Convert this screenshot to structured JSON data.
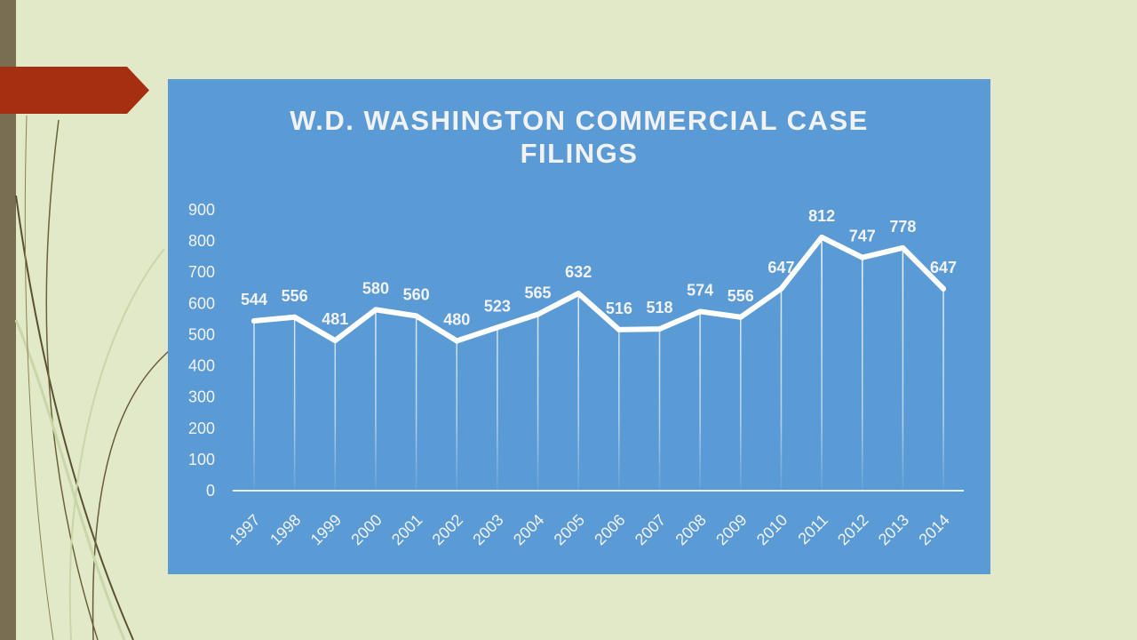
{
  "colors": {
    "background": "#e2e9c8",
    "left_bar": "#7a6e52",
    "arrow": "#a52f10",
    "chart_background": "#5b9bd5",
    "line": "#ffffff",
    "text": "#f2f2f2"
  },
  "chart_data": {
    "type": "line",
    "title": "W.D. WASHINGTON COMMERCIAL CASE FILINGS",
    "title_lines": [
      "W.D. WASHINGTON COMMERCIAL CASE",
      "FILINGS"
    ],
    "xlabel": "",
    "ylabel": "",
    "ylim": [
      0,
      900
    ],
    "yticks": [
      0,
      100,
      200,
      300,
      400,
      500,
      600,
      700,
      800,
      900
    ],
    "grid": false,
    "legend": "none",
    "categories": [
      "1997",
      "1998",
      "1999",
      "2000",
      "2001",
      "2002",
      "2003",
      "2004",
      "2005",
      "2006",
      "2007",
      "2008",
      "2009",
      "2010",
      "2011",
      "2012",
      "2013",
      "2014"
    ],
    "series": [
      {
        "values": [
          544,
          556,
          481,
          580,
          560,
          480,
          523,
          565,
          632,
          516,
          518,
          574,
          556,
          647,
          812,
          747,
          778,
          647
        ]
      }
    ],
    "data_labels": [
      "544",
      "556",
      "481",
      "580",
      "560",
      "480",
      "523",
      "565",
      "632",
      "516",
      "518",
      "574",
      "556",
      "647",
      "812",
      "747",
      "778",
      "647"
    ]
  }
}
